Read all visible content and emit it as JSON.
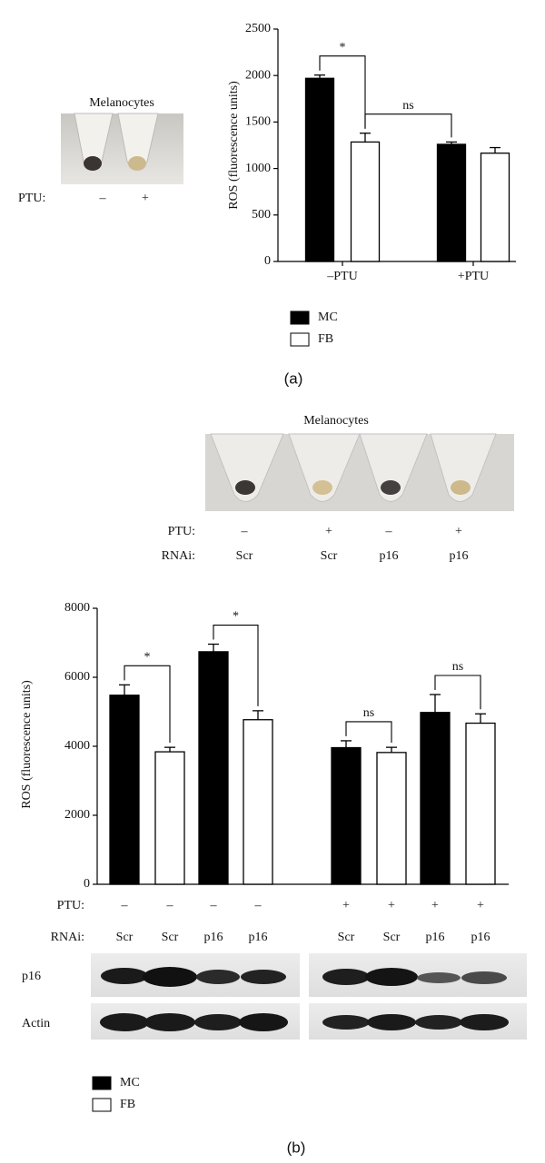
{
  "chart_data": [
    {
      "type": "bar",
      "panel_label": "(a)",
      "ylabel": "ROS (fluorescence units)",
      "image_title": "Melanocytes",
      "image_rows": [
        {
          "label": "PTU:",
          "values": [
            "–",
            "+"
          ]
        }
      ],
      "categories": [
        "–PTU",
        "+PTU"
      ],
      "series": [
        {
          "name": "MC",
          "color": "#000000",
          "values": [
            1970,
            1260
          ],
          "errors": [
            35,
            25
          ]
        },
        {
          "name": "FB",
          "color": "#ffffff",
          "values": [
            1285,
            1165
          ],
          "errors": [
            95,
            60
          ]
        }
      ],
      "annotations": [
        "*",
        "ns"
      ],
      "ylim": [
        0,
        2500
      ],
      "yticks": [
        0,
        500,
        1000,
        1500,
        2000,
        2500
      ],
      "legend": "bottom-left"
    },
    {
      "type": "bar",
      "panel_label": "(b)",
      "ylabel": "ROS (fluorescence units)",
      "image_title": "Melanocytes",
      "image_rows": [
        {
          "label": "PTU:",
          "values": [
            "–",
            "+",
            "–",
            "+"
          ]
        },
        {
          "label": "RNAi:",
          "values": [
            "Scr",
            "Scr",
            "p16",
            "p16"
          ]
        }
      ],
      "bar_label_rows": [
        {
          "label": "PTU:",
          "values": [
            "–",
            "–",
            "–",
            "–",
            "+",
            "+",
            "+",
            "+"
          ]
        },
        {
          "label": "RNAi:",
          "values": [
            "Scr",
            "Scr",
            "p16",
            "p16",
            "Scr",
            "Scr",
            "p16",
            "p16"
          ]
        }
      ],
      "blot_rows": [
        "p16",
        "Actin"
      ],
      "series": [
        {
          "name": "MC",
          "color": "#000000",
          "values": [
            5480,
            6740,
            3960,
            4980
          ],
          "errors": [
            300,
            220,
            200,
            520
          ]
        },
        {
          "name": "FB",
          "color": "#ffffff",
          "values": [
            3840,
            4770,
            3820,
            4670
          ],
          "errors": [
            130,
            260,
            150,
            270
          ]
        }
      ],
      "annotations": [
        "*",
        "*",
        "ns",
        "ns"
      ],
      "ylim": [
        0,
        8000
      ],
      "yticks": [
        0,
        2000,
        4000,
        6000,
        8000
      ],
      "legend": "bottom-left"
    }
  ]
}
